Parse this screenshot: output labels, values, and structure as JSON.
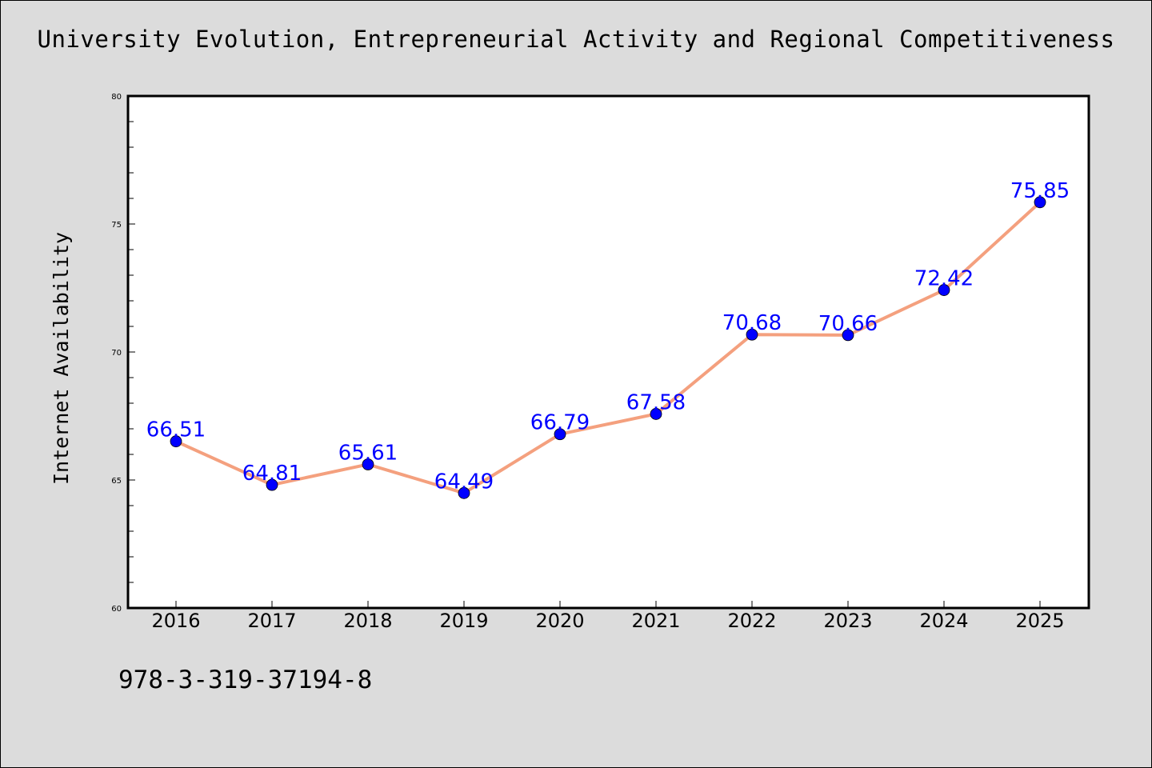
{
  "page": {
    "title": "University Evolution, Entrepreneurial Activity and Regional Competitiveness",
    "footer_code": "978-3-319-37194-8"
  },
  "chart_data": {
    "type": "line",
    "title": "University Evolution, Entrepreneurial Activity and Regional Competitiveness",
    "xlabel": "",
    "ylabel": "Internet Availability",
    "categories": [
      "2016",
      "2017",
      "2018",
      "2019",
      "2020",
      "2021",
      "2022",
      "2023",
      "2024",
      "2025"
    ],
    "series": [
      {
        "values": [
          66.51,
          64.81,
          65.61,
          64.49,
          66.79,
          67.58,
          70.68,
          70.66,
          72.42,
          75.85
        ],
        "labels": [
          "66.51",
          "64.81",
          "65.61",
          "64.49",
          "66.79",
          "67.58",
          "70.68",
          "70.66",
          "72.42",
          "75.85"
        ]
      }
    ],
    "ylim": [
      60,
      80
    ],
    "yticks": [
      60,
      65,
      70,
      75,
      80
    ],
    "ytick_labels": [
      "60",
      "65",
      "70",
      "75",
      "80"
    ],
    "grid": false,
    "colors": {
      "line": "#f4a07e",
      "marker": "#0000ff",
      "data_label": "#0000ff",
      "background": "#dcdcdc",
      "plot_area": "#ffffff"
    }
  }
}
